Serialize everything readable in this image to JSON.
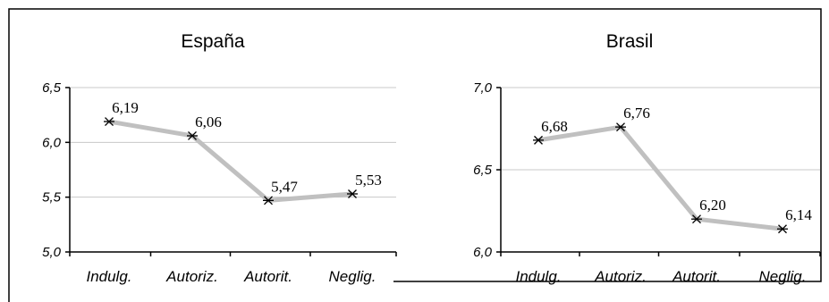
{
  "chart_data": [
    {
      "type": "line",
      "title": "España",
      "categories": [
        "Indulg.",
        "Autoriz.",
        "Autorit.",
        "Neglig."
      ],
      "values": [
        6.19,
        6.06,
        5.47,
        5.53
      ],
      "data_labels": [
        "6,19",
        "6,06",
        "5,47",
        "5,53"
      ],
      "ylim": [
        5.0,
        6.5
      ],
      "yticks": [
        5.0,
        5.5,
        6.0,
        6.5
      ],
      "ytick_labels": [
        "5,0",
        "5,5",
        "6,0",
        "6,5"
      ],
      "grid": true,
      "line_color": "#c0c0c0",
      "marker": "asterisk"
    },
    {
      "type": "line",
      "title": "Brasil",
      "categories": [
        "Indulg.",
        "Autoriz.",
        "Autorit.",
        "Neglig."
      ],
      "values": [
        6.68,
        6.76,
        6.2,
        6.14
      ],
      "data_labels": [
        "6,68",
        "6,76",
        "6,20",
        "6,14"
      ],
      "ylim": [
        6.0,
        7.0
      ],
      "yticks": [
        6.0,
        6.5,
        7.0
      ],
      "ytick_labels": [
        "6,0",
        "6,5",
        "7,0"
      ],
      "grid": true,
      "line_color": "#c0c0c0",
      "marker": "asterisk"
    }
  ]
}
